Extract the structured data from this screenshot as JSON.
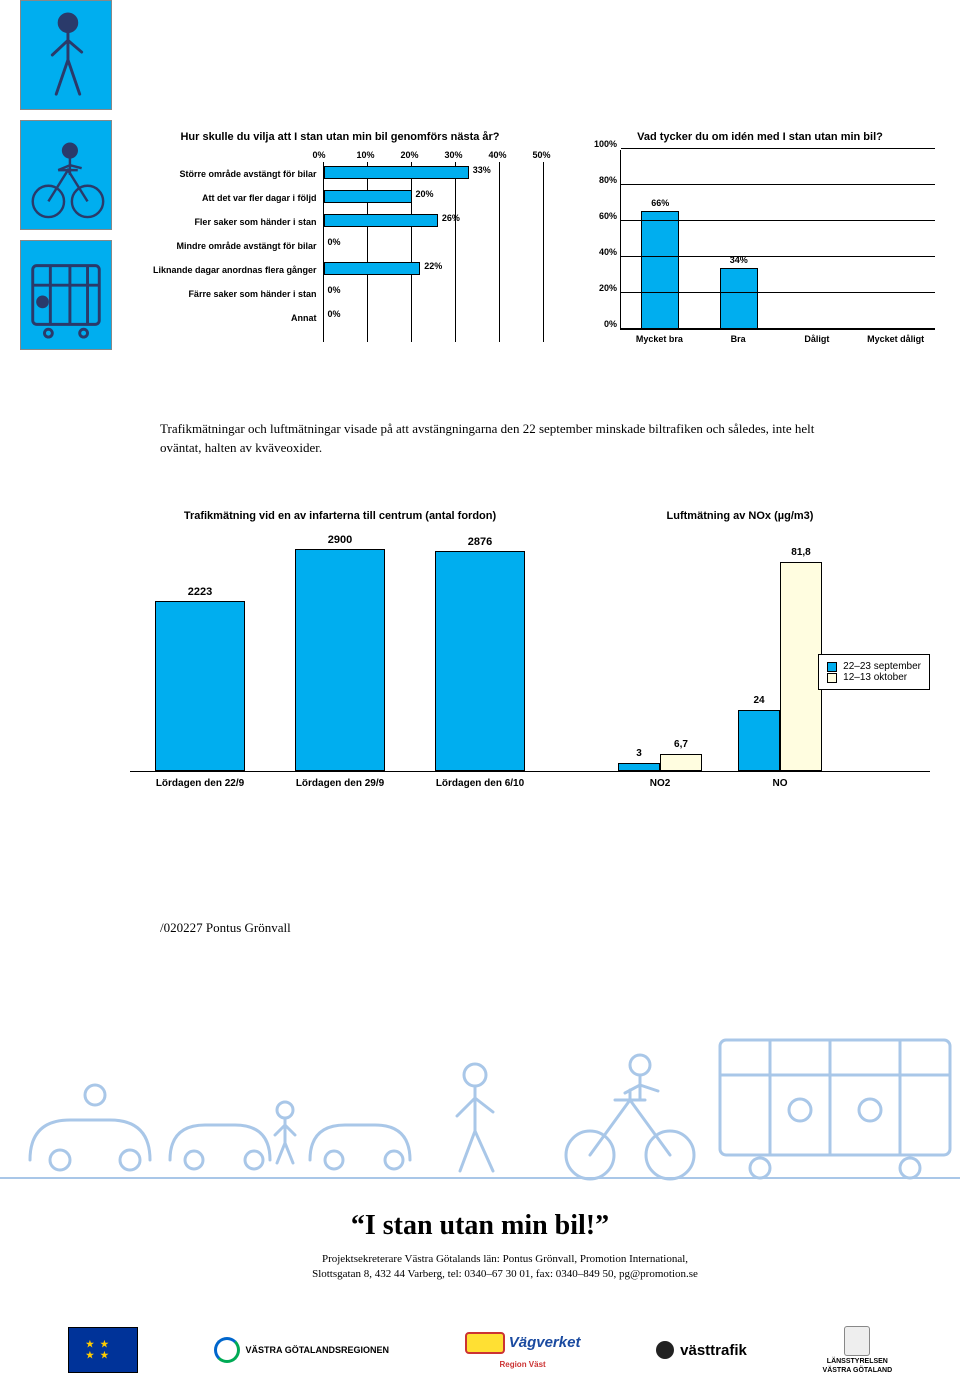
{
  "colors": {
    "primary": "#00aeef",
    "bar_border": "#000000",
    "nox_series2": "#fffde0",
    "illus_stroke": "#a9c7e8",
    "illus_stroke_dark": "#2a3a6a"
  },
  "side_panels": {
    "bg": "#00aeef"
  },
  "chart1": {
    "title": "Hur skulle du vilja att I stan utan min bil genomförs nästa år?",
    "xmax": 50,
    "xtick_step": 10,
    "xticks": [
      "0%",
      "10%",
      "20%",
      "30%",
      "40%",
      "50%"
    ],
    "rows": [
      {
        "label": "Större område avstängt för bilar",
        "value": 33,
        "vlabel": "33%"
      },
      {
        "label": "Att det var fler dagar i följd",
        "value": 20,
        "vlabel": "20%"
      },
      {
        "label": "Fler saker som händer i stan",
        "value": 26,
        "vlabel": "26%"
      },
      {
        "label": "Mindre område avstängt för bilar",
        "value": 0,
        "vlabel": "0%"
      },
      {
        "label": "Liknande dagar anordnas flera gånger",
        "value": 22,
        "vlabel": "22%"
      },
      {
        "label": "Färre saker som händer i stan",
        "value": 0,
        "vlabel": "0%"
      },
      {
        "label": "Annat",
        "value": 0,
        "vlabel": "0%"
      }
    ]
  },
  "chart2": {
    "title": "Vad tycker du om idén med I stan utan min bil?",
    "ymax": 100,
    "ytick_step": 20,
    "yticks": [
      "0%",
      "20%",
      "40%",
      "60%",
      "80%",
      "100%"
    ],
    "bars": [
      {
        "label": "Mycket bra",
        "value": 66,
        "vlabel": "66%"
      },
      {
        "label": "Bra",
        "value": 34,
        "vlabel": "34%"
      },
      {
        "label": "Dåligt",
        "value": 0,
        "vlabel": ""
      },
      {
        "label": "Mycket dåligt",
        "value": 0,
        "vlabel": ""
      }
    ]
  },
  "paragraph": "Trafikmätningar och luftmätningar visade på att avstängningarna den 22 september minskade biltrafiken och således, inte helt oväntat, halten av kväveoxider.",
  "chart3": {
    "title": "Trafikmätning vid en av infarterna till centrum (antal fordon)",
    "ymax": 3000,
    "bars": [
      {
        "label": "Lördagen den 22/9",
        "value": 2223,
        "vlabel": "2223"
      },
      {
        "label": "Lördagen den 29/9",
        "value": 2900,
        "vlabel": "2900"
      },
      {
        "label": "Lördagen den 6/10",
        "value": 2876,
        "vlabel": "2876"
      }
    ]
  },
  "chart4": {
    "title": "Luftmätning av NOx (µg/m3)",
    "ymax": 90,
    "groups": [
      {
        "label": "NO2",
        "series": [
          {
            "v": 3,
            "vl": "3",
            "c": "#00aeef"
          },
          {
            "v": 6.7,
            "vl": "6,7",
            "c": "#fffde0"
          }
        ]
      },
      {
        "label": "NO",
        "series": [
          {
            "v": 24,
            "vl": "24",
            "c": "#00aeef"
          },
          {
            "v": 81.8,
            "vl": "81,8",
            "c": "#fffde0"
          }
        ]
      }
    ],
    "legend": [
      {
        "label": "22–23 september",
        "color": "#00aeef"
      },
      {
        "label": "12–13 oktober",
        "color": "#fffde0"
      }
    ]
  },
  "signature": "/020227 Pontus Grönvall",
  "slogan": "“I stan utan min bil!”",
  "credit_line1": "Projektsekreterare Västra Götalands län: Pontus Grönvall, Promotion International,",
  "credit_line2": "Slottsgatan 8, 432 44 Varberg, tel: 0340–67 30 01, fax: 0340–849 50, pg@promotion.se",
  "logos": {
    "vg": "VÄSTRA GÖTALANDSREGIONEN",
    "vv": "Vägverket",
    "vv2": "Region Väst",
    "vt": "västtrafik",
    "lst1": "LÄNSSTYRELSEN",
    "lst2": "VÄSTRA GÖTALAND"
  }
}
